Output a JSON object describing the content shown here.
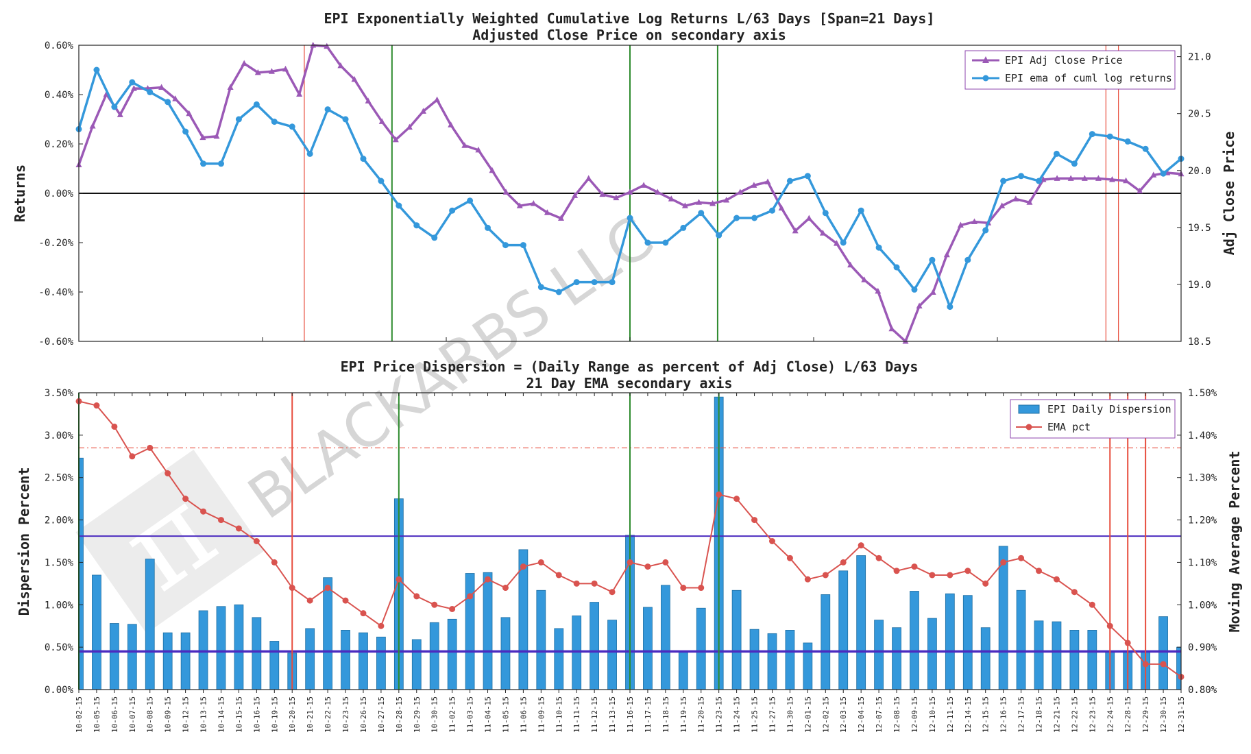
{
  "watermark": {
    "text": "BLACKARBS LLC",
    "logo": "pi-logo"
  },
  "chart_data": [
    {
      "type": "line",
      "title": "EPI Exponentially Weighted Cumulative Log Returns L/63 Days [Span=21 Days]",
      "subtitle": "Adjusted Close Price on secondary axis",
      "ylabel": "Returns",
      "y2label": "Adj Close Price",
      "ylim": [
        -0.6,
        0.6
      ],
      "y2lim": [
        18.5,
        21.1
      ],
      "yticks": [
        "0.60%",
        "0.40%",
        "0.20%",
        "0.00%",
        "-0.20%",
        "-0.40%",
        "-0.60%"
      ],
      "y2ticks": [
        "21.0",
        "20.5",
        "20.0",
        "19.5",
        "19.0",
        "18.5"
      ],
      "legend": {
        "position": "top-right",
        "entries": [
          "EPI Adj Close Price",
          "EPI ema of cuml log returns"
        ]
      },
      "vlines_red": [
        18,
        82,
        83
      ],
      "vlines_green": [
        25,
        44,
        51
      ],
      "x_count": 89,
      "series": [
        {
          "name": "EPI Adj Close Price",
          "axis": "secondary",
          "color": "#9b59b6",
          "marker": "triangle",
          "values": [
            20.05,
            20.39,
            20.67,
            20.49,
            20.72,
            20.72,
            20.73,
            20.63,
            20.5,
            20.29,
            20.3,
            20.73,
            20.94,
            20.86,
            20.87,
            20.89,
            20.67,
            21.1,
            21.09,
            20.92,
            20.8,
            20.61,
            20.43,
            20.27,
            20.38,
            20.52,
            20.62,
            20.4,
            20.22,
            20.18,
            20.0,
            19.81,
            19.69,
            19.71,
            19.63,
            19.58,
            19.78,
            19.93,
            19.79,
            19.76,
            19.81,
            19.87,
            19.81,
            19.75,
            19.69,
            19.72,
            19.71,
            19.74,
            19.81,
            19.87,
            19.9,
            19.67,
            19.47,
            19.58,
            19.45,
            19.36,
            19.17,
            19.04,
            18.94,
            18.61,
            18.5,
            18.81,
            18.93,
            19.26,
            19.52,
            19.55,
            19.54,
            19.69,
            19.75,
            19.72,
            19.92,
            19.93,
            19.93,
            19.93,
            19.93,
            19.92,
            19.91,
            19.82,
            19.96,
            19.98,
            19.97
          ]
        },
        {
          "name": "EPI ema of cuml log returns",
          "axis": "primary",
          "color": "#3498db",
          "marker": "circle",
          "values": [
            0.26,
            0.5,
            0.35,
            0.45,
            0.41,
            0.37,
            0.25,
            0.12,
            0.12,
            0.3,
            0.36,
            0.29,
            0.27,
            0.16,
            0.34,
            0.3,
            0.14,
            0.05,
            -0.05,
            -0.13,
            -0.18,
            -0.07,
            -0.03,
            -0.14,
            -0.21,
            -0.21,
            -0.38,
            -0.4,
            -0.36,
            -0.36,
            -0.36,
            -0.1,
            -0.2,
            -0.2,
            -0.14,
            -0.08,
            -0.17,
            -0.1,
            -0.1,
            -0.07,
            0.05,
            0.07,
            -0.08,
            -0.2,
            -0.07,
            -0.22,
            -0.3,
            -0.39,
            -0.27,
            -0.46,
            -0.27,
            -0.15,
            0.05,
            0.07,
            0.05,
            0.16,
            0.12,
            0.24,
            0.23,
            0.21,
            0.18,
            0.08,
            0.14
          ]
        }
      ]
    },
    {
      "type": "bar",
      "title": "EPI Price Dispersion = (Daily Range as percent of Adj Close) L/63 Days",
      "subtitle": "21 Day EMA secondary axis",
      "ylabel": "Dispersion Percent",
      "y2label": "Moving Average Percent",
      "ylim": [
        0,
        3.5
      ],
      "y2lim": [
        0.8,
        1.5
      ],
      "yticks": [
        "3.50%",
        "3.00%",
        "2.50%",
        "2.00%",
        "1.50%",
        "1.00%",
        "0.50%",
        "0.00%"
      ],
      "y2ticks": [
        "1.50%",
        "1.40%",
        "1.30%",
        "1.20%",
        "1.10%",
        "1.00%",
        "0.90%",
        "0.80%"
      ],
      "legend": {
        "position": "top-right",
        "entries": [
          "EPI Daily Dispersion",
          "EMA pct"
        ]
      },
      "hline_dashdot": 1.37,
      "hline_blue_upper": 1.81,
      "hline_blue_lower": 0.45,
      "vlines_red": [
        12,
        58,
        59,
        60
      ],
      "vlines_green": [
        0,
        18,
        31,
        36
      ],
      "categories": [
        "10-02-15",
        "10-05-15",
        "10-06-15",
        "10-07-15",
        "10-08-15",
        "10-09-15",
        "10-12-15",
        "10-13-15",
        "10-14-15",
        "10-15-15",
        "10-16-15",
        "10-19-15",
        "10-20-15",
        "10-21-15",
        "10-22-15",
        "10-23-15",
        "10-26-15",
        "10-27-15",
        "10-28-15",
        "10-29-15",
        "10-30-15",
        "11-02-15",
        "11-03-15",
        "11-04-15",
        "11-05-15",
        "11-06-15",
        "11-09-15",
        "11-10-15",
        "11-11-15",
        "11-12-15",
        "11-13-15",
        "11-16-15",
        "11-17-15",
        "11-18-15",
        "11-19-15",
        "11-20-15",
        "11-23-15",
        "11-24-15",
        "11-25-15",
        "11-27-15",
        "11-30-15",
        "12-01-15",
        "12-02-15",
        "12-03-15",
        "12-04-15",
        "12-07-15",
        "12-08-15",
        "12-09-15",
        "12-10-15",
        "12-11-15",
        "12-14-15",
        "12-15-15",
        "12-16-15",
        "12-17-15",
        "12-18-15",
        "12-21-15",
        "12-22-15",
        "12-23-15",
        "12-24-15",
        "12-28-15",
        "12-29-15",
        "12-30-15",
        "12-31-15"
      ],
      "series": [
        {
          "name": "EPI Daily Dispersion",
          "axis": "primary",
          "color": "#3498db",
          "values": [
            2.73,
            1.35,
            0.78,
            0.77,
            1.54,
            0.67,
            0.67,
            0.93,
            0.98,
            1.0,
            0.85,
            0.57,
            0.43,
            0.72,
            1.32,
            0.7,
            0.67,
            0.62,
            2.25,
            0.59,
            0.79,
            0.83,
            1.37,
            1.38,
            0.85,
            1.65,
            1.17,
            0.72,
            0.87,
            1.03,
            0.82,
            1.82,
            0.97,
            1.23,
            0.45,
            0.96,
            3.45,
            1.17,
            0.71,
            0.66,
            0.7,
            0.55,
            1.12,
            1.4,
            1.58,
            0.82,
            0.73,
            1.16,
            0.84,
            1.13,
            1.11,
            0.73,
            1.69,
            1.17,
            0.81,
            0.8,
            0.7,
            0.7,
            0.45,
            0.46,
            0.45,
            0.86,
            0.5
          ]
        },
        {
          "name": "EMA pct",
          "axis": "secondary",
          "color": "#d9534f",
          "values": [
            1.48,
            1.47,
            1.42,
            1.35,
            1.37,
            1.31,
            1.25,
            1.22,
            1.2,
            1.18,
            1.15,
            1.1,
            1.04,
            1.01,
            1.04,
            1.01,
            0.98,
            0.95,
            1.06,
            1.02,
            1.0,
            0.99,
            1.02,
            1.06,
            1.04,
            1.09,
            1.1,
            1.07,
            1.05,
            1.05,
            1.03,
            1.1,
            1.09,
            1.1,
            1.04,
            1.04,
            1.26,
            1.25,
            1.2,
            1.15,
            1.11,
            1.06,
            1.07,
            1.1,
            1.14,
            1.11,
            1.08,
            1.09,
            1.07,
            1.07,
            1.08,
            1.05,
            1.1,
            1.11,
            1.08,
            1.06,
            1.03,
            1.0,
            0.95,
            0.91,
            0.86,
            0.86,
            0.83
          ]
        }
      ]
    }
  ]
}
